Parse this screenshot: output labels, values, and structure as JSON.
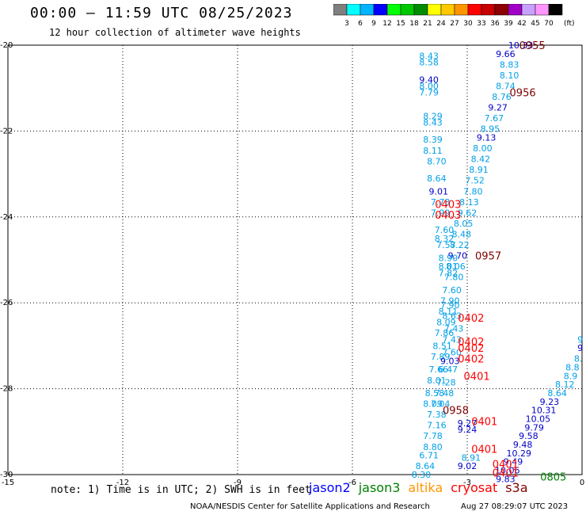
{
  "header": {
    "title": "00:00 – 11:59 UTC 08/25/2023",
    "subtitle": "12 hour collection of altimeter wave heights"
  },
  "colorbar": {
    "unit": "(ft)",
    "labels": [
      "3",
      "6",
      "9",
      "12",
      "15",
      "18",
      "21",
      "24",
      "27",
      "30",
      "33",
      "36",
      "39",
      "42",
      "45",
      "70"
    ],
    "colors": [
      "#7f7f7f",
      "#00ffff",
      "#00b4ff",
      "#0000ff",
      "#00ff00",
      "#00c800",
      "#008c00",
      "#ffff00",
      "#ffc800",
      "#ff9600",
      "#ff0000",
      "#c80000",
      "#8c0000",
      "#a000c8",
      "#c8a0ff",
      "#ff96ff",
      "#000000"
    ]
  },
  "map": {
    "lon_ticks": [
      "-15",
      "-12",
      "-9",
      "-6",
      "-3",
      "0"
    ],
    "lat_ticks": [
      "-20",
      "-22",
      "-24",
      "-26",
      "-28",
      "-30"
    ],
    "lon_range": [
      -15,
      0
    ],
    "lat_range": [
      -30,
      -20
    ]
  },
  "colors": {
    "light": "#00a0e6",
    "dark": "#0000c8",
    "red": "#ff0000",
    "maroon": "#800000",
    "green": "#008000"
  },
  "observations": [
    {
      "lon": -1.6,
      "lat": -20.0,
      "text": "10.33",
      "c": "dark"
    },
    {
      "lon": -2.0,
      "lat": -20.2,
      "text": "9.66",
      "c": "dark"
    },
    {
      "lon": -1.9,
      "lat": -20.45,
      "text": "8.83",
      "c": "light"
    },
    {
      "lon": -1.9,
      "lat": -20.7,
      "text": "8.10",
      "c": "light"
    },
    {
      "lon": -2.0,
      "lat": -20.95,
      "text": "8.74",
      "c": "light"
    },
    {
      "lon": -2.1,
      "lat": -21.2,
      "text": "8.76",
      "c": "light"
    },
    {
      "lon": -2.2,
      "lat": -21.45,
      "text": "9.27",
      "c": "dark"
    },
    {
      "lon": -2.3,
      "lat": -21.7,
      "text": "7.67",
      "c": "light"
    },
    {
      "lon": -2.4,
      "lat": -21.95,
      "text": "8.95",
      "c": "light"
    },
    {
      "lon": -2.5,
      "lat": -22.15,
      "text": "9.13",
      "c": "dark"
    },
    {
      "lon": -2.6,
      "lat": -22.4,
      "text": "8.00",
      "c": "light"
    },
    {
      "lon": -2.65,
      "lat": -22.65,
      "text": "8.42",
      "c": "light"
    },
    {
      "lon": -2.7,
      "lat": -22.9,
      "text": "8.91",
      "c": "light"
    },
    {
      "lon": -2.8,
      "lat": -23.15,
      "text": "7.52",
      "c": "light"
    },
    {
      "lon": -2.85,
      "lat": -23.4,
      "text": "7.80",
      "c": "light"
    },
    {
      "lon": -2.95,
      "lat": -23.65,
      "text": "8.13",
      "c": "light"
    },
    {
      "lon": -3.0,
      "lat": -23.9,
      "text": "9.62",
      "c": "light"
    },
    {
      "lon": -3.1,
      "lat": -24.15,
      "text": "8.05",
      "c": "light"
    },
    {
      "lon": -3.15,
      "lat": -24.4,
      "text": "8.48",
      "c": "light"
    },
    {
      "lon": -3.2,
      "lat": -24.65,
      "text": "8.22",
      "c": "light"
    },
    {
      "lon": -3.25,
      "lat": -24.9,
      "text": "9.70",
      "c": "dark"
    },
    {
      "lon": -3.3,
      "lat": -25.15,
      "text": "8.06",
      "c": "light"
    },
    {
      "lon": -3.35,
      "lat": -25.4,
      "text": "7.80",
      "c": "light"
    },
    {
      "lon": -3.4,
      "lat": -25.7,
      "text": "7.60",
      "c": "light"
    },
    {
      "lon": -3.45,
      "lat": -25.95,
      "text": "7.90",
      "c": "light"
    },
    {
      "lon": -3.5,
      "lat": -26.2,
      "text": "8.11",
      "c": "light"
    },
    {
      "lon": -3.55,
      "lat": -26.45,
      "text": "8.09",
      "c": "light"
    },
    {
      "lon": -3.6,
      "lat": -26.7,
      "text": "7.86",
      "c": "light"
    },
    {
      "lon": -3.65,
      "lat": -27.0,
      "text": "8.51",
      "c": "light"
    },
    {
      "lon": -3.7,
      "lat": -27.25,
      "text": "7.89",
      "c": "light"
    },
    {
      "lon": -3.75,
      "lat": -27.55,
      "text": "7.66",
      "c": "light"
    },
    {
      "lon": -3.8,
      "lat": -27.8,
      "text": "8.01",
      "c": "light"
    },
    {
      "lon": -3.85,
      "lat": -28.1,
      "text": "8.58",
      "c": "light"
    },
    {
      "lon": -3.9,
      "lat": -28.35,
      "text": "8.09",
      "c": "light"
    },
    {
      "lon": -3.0,
      "lat": -28.8,
      "text": "9.27",
      "c": "dark"
    },
    {
      "lon": -3.0,
      "lat": -28.95,
      "text": "9.24",
      "c": "dark"
    },
    {
      "lon": -2.9,
      "lat": -29.6,
      "text": "8.91",
      "c": "light"
    },
    {
      "lon": -3.0,
      "lat": -29.8,
      "text": "9.02",
      "c": "dark"
    },
    {
      "lon": -4.0,
      "lat": -20.25,
      "text": "8.43",
      "c": "light"
    },
    {
      "lon": -4.0,
      "lat": -20.4,
      "text": "8.58",
      "c": "light"
    },
    {
      "lon": -4.0,
      "lat": -20.8,
      "text": "9.40",
      "c": "dark"
    },
    {
      "lon": -4.0,
      "lat": -20.95,
      "text": "8.00",
      "c": "light"
    },
    {
      "lon": -4.0,
      "lat": -21.1,
      "text": "7.79",
      "c": "light"
    },
    {
      "lon": -3.9,
      "lat": -21.65,
      "text": "8.29",
      "c": "light"
    },
    {
      "lon": -3.9,
      "lat": -21.8,
      "text": "8.43",
      "c": "light"
    },
    {
      "lon": -3.9,
      "lat": -22.2,
      "text": "8.39",
      "c": "light"
    },
    {
      "lon": -3.9,
      "lat": -22.45,
      "text": "8.11",
      "c": "light"
    },
    {
      "lon": -3.8,
      "lat": -22.7,
      "text": "8.70",
      "c": "light"
    },
    {
      "lon": -3.8,
      "lat": -23.1,
      "text": "8.64",
      "c": "light"
    },
    {
      "lon": -3.75,
      "lat": -23.4,
      "text": "9.01",
      "c": "dark"
    },
    {
      "lon": -3.7,
      "lat": -23.65,
      "text": "7.73",
      "c": "light"
    },
    {
      "lon": -3.7,
      "lat": -23.9,
      "text": "7.99",
      "c": "light"
    },
    {
      "lon": -3.6,
      "lat": -24.3,
      "text": "7.60",
      "c": "light"
    },
    {
      "lon": -3.6,
      "lat": -24.5,
      "text": "8.32",
      "c": "light"
    },
    {
      "lon": -3.55,
      "lat": -24.65,
      "text": "7.57",
      "c": "light"
    },
    {
      "lon": -3.5,
      "lat": -24.95,
      "text": "8.90",
      "c": "light"
    },
    {
      "lon": -3.5,
      "lat": -25.15,
      "text": "8.01",
      "c": "light"
    },
    {
      "lon": -3.5,
      "lat": -25.3,
      "text": "7.82",
      "c": "light"
    },
    {
      "lon": -3.45,
      "lat": -26.05,
      "text": "7.90",
      "c": "light"
    },
    {
      "lon": -3.4,
      "lat": -26.3,
      "text": "8.63",
      "c": "light"
    },
    {
      "lon": -3.35,
      "lat": -26.6,
      "text": "7.43",
      "c": "light"
    },
    {
      "lon": -3.4,
      "lat": -26.85,
      "text": "7.43",
      "c": "light"
    },
    {
      "lon": -3.4,
      "lat": -27.15,
      "text": "7.60",
      "c": "light"
    },
    {
      "lon": -3.45,
      "lat": -27.35,
      "text": "9.03",
      "c": "dark"
    },
    {
      "lon": -3.5,
      "lat": -27.55,
      "text": "6.47",
      "c": "light"
    },
    {
      "lon": -3.55,
      "lat": -27.85,
      "text": "7.28",
      "c": "light"
    },
    {
      "lon": -3.6,
      "lat": -28.1,
      "text": "7.48",
      "c": "light"
    },
    {
      "lon": -3.7,
      "lat": -28.35,
      "text": "7.04",
      "c": "light"
    },
    {
      "lon": -3.8,
      "lat": -28.6,
      "text": "7.38",
      "c": "light"
    },
    {
      "lon": -3.8,
      "lat": -28.85,
      "text": "7.16",
      "c": "light"
    },
    {
      "lon": -3.9,
      "lat": -29.1,
      "text": "7.78",
      "c": "light"
    },
    {
      "lon": -3.9,
      "lat": -29.35,
      "text": "8.80",
      "c": "light"
    },
    {
      "lon": -4.0,
      "lat": -29.55,
      "text": "6.71",
      "c": "light"
    },
    {
      "lon": -4.1,
      "lat": -29.8,
      "text": "8.64",
      "c": "light"
    },
    {
      "lon": -4.2,
      "lat": -30.0,
      "text": "8.30",
      "c": "light"
    },
    {
      "lon": -0.05,
      "lat": -26.85,
      "text": "9",
      "c": "light"
    },
    {
      "lon": -0.05,
      "lat": -27.05,
      "text": "9",
      "c": "dark"
    },
    {
      "lon": -0.1,
      "lat": -27.3,
      "text": "8.",
      "c": "light"
    },
    {
      "lon": -0.25,
      "lat": -27.5,
      "text": "8.8",
      "c": "light"
    },
    {
      "lon": -0.3,
      "lat": -27.7,
      "text": "8.9",
      "c": "light"
    },
    {
      "lon": -0.45,
      "lat": -27.9,
      "text": "8.12",
      "c": "light"
    },
    {
      "lon": -0.65,
      "lat": -28.1,
      "text": "8.64",
      "c": "light"
    },
    {
      "lon": -0.85,
      "lat": -28.3,
      "text": "9.23",
      "c": "dark"
    },
    {
      "lon": -1.0,
      "lat": -28.5,
      "text": "10.31",
      "c": "dark"
    },
    {
      "lon": -1.15,
      "lat": -28.7,
      "text": "10.05",
      "c": "dark"
    },
    {
      "lon": -1.25,
      "lat": -28.9,
      "text": "9.79",
      "c": "dark"
    },
    {
      "lon": -1.4,
      "lat": -29.1,
      "text": "9.58",
      "c": "dark"
    },
    {
      "lon": -1.55,
      "lat": -29.3,
      "text": "9.48",
      "c": "dark"
    },
    {
      "lon": -1.65,
      "lat": -29.5,
      "text": "10.29",
      "c": "dark"
    },
    {
      "lon": -1.8,
      "lat": -29.7,
      "text": "9.49",
      "c": "dark"
    },
    {
      "lon": -1.95,
      "lat": -29.9,
      "text": "10.06",
      "c": "dark"
    },
    {
      "lon": -2.0,
      "lat": -30.1,
      "text": "9.83",
      "c": "dark"
    }
  ],
  "times": [
    {
      "lon": -1.3,
      "lat": -20.0,
      "text": "0955",
      "c": "maroon"
    },
    {
      "lon": -1.55,
      "lat": -21.1,
      "text": "0956",
      "c": "maroon"
    },
    {
      "lon": -3.5,
      "lat": -23.7,
      "text": "0403",
      "c": "red"
    },
    {
      "lon": -3.5,
      "lat": -23.95,
      "text": "0403",
      "c": "red"
    },
    {
      "lon": -2.45,
      "lat": -24.9,
      "text": "0957",
      "c": "maroon"
    },
    {
      "lon": -2.9,
      "lat": -26.35,
      "text": "0402",
      "c": "red"
    },
    {
      "lon": -2.9,
      "lat": -26.9,
      "text": "0402",
      "c": "red"
    },
    {
      "lon": -2.9,
      "lat": -27.05,
      "text": "0402",
      "c": "red"
    },
    {
      "lon": -2.9,
      "lat": -27.3,
      "text": "0402",
      "c": "red"
    },
    {
      "lon": -2.75,
      "lat": -27.7,
      "text": "0401",
      "c": "red"
    },
    {
      "lon": -3.3,
      "lat": -28.5,
      "text": "0958",
      "c": "maroon"
    },
    {
      "lon": -2.55,
      "lat": -28.75,
      "text": "0401",
      "c": "red"
    },
    {
      "lon": -2.55,
      "lat": -29.4,
      "text": "0401",
      "c": "red"
    },
    {
      "lon": -2.0,
      "lat": -29.75,
      "text": "0401",
      "c": "red"
    },
    {
      "lon": -2.0,
      "lat": -29.95,
      "text": "0401",
      "c": "red"
    },
    {
      "lon": -0.75,
      "lat": -30.05,
      "text": "0805",
      "c": "green"
    }
  ],
  "note": "note: 1) Time is in UTC; 2) SWH is in feet",
  "satellites": [
    {
      "name": "jason2",
      "color": "#0000ff"
    },
    {
      "name": "jason3",
      "color": "#008000"
    },
    {
      "name": "altika",
      "color": "#ff9600"
    },
    {
      "name": "cryosat",
      "color": "#ff0000"
    },
    {
      "name": "s3a",
      "color": "#800000"
    }
  ],
  "footer": {
    "credit": "NOAA/NESDIS Center for Satellite Applications and Research",
    "stamp": "Aug 27 08:29:07 UTC 2023"
  }
}
